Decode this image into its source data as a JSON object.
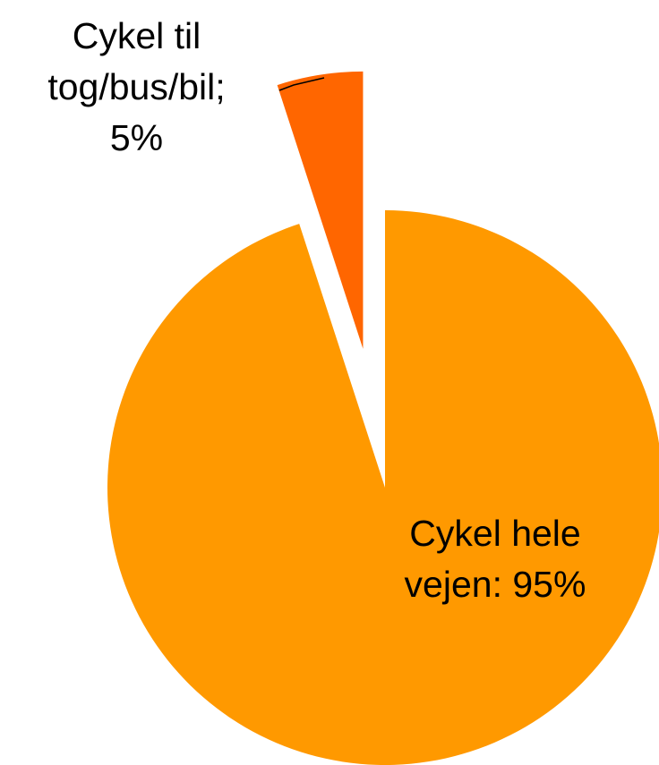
{
  "chart_data": {
    "type": "pie",
    "categories": [
      "Cykel hele vejen:",
      "Cykel til tog/bus/bil;"
    ],
    "values": [
      95,
      5
    ],
    "value_labels": [
      "95%",
      "5%"
    ],
    "colors": [
      "#FF9900",
      "#FF6600"
    ]
  }
}
